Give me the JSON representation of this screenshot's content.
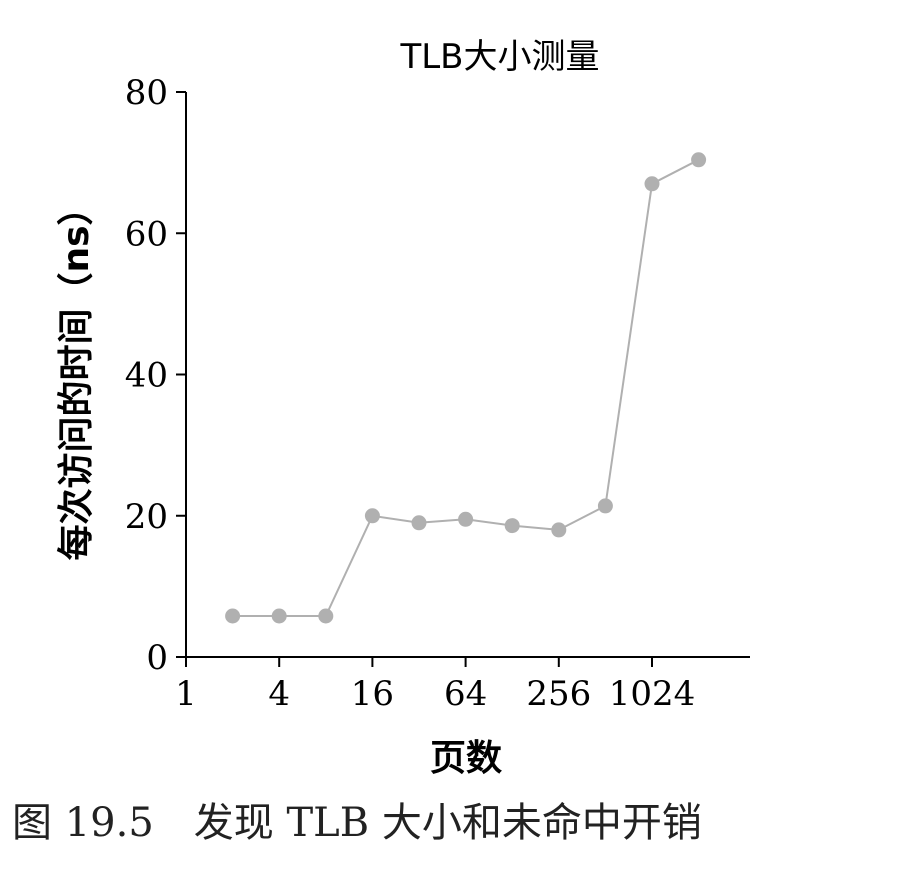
{
  "chart_data": {
    "type": "line",
    "title": "TLB大小测量",
    "xlabel": "页数",
    "ylabel": "每次访问的时间（ns）",
    "x_scale": "log2",
    "x": [
      2,
      4,
      8,
      16,
      32,
      64,
      128,
      256,
      512,
      1024,
      2048
    ],
    "series": [
      {
        "values": [
          5.8,
          5.8,
          5.8,
          20.0,
          19.0,
          19.5,
          18.6,
          18.0,
          21.4,
          67.0,
          70.4
        ],
        "color": "#b0b0b0"
      }
    ],
    "xticks": [
      1,
      4,
      16,
      64,
      256,
      1024
    ],
    "xtick_labels": [
      "1",
      "4",
      "16",
      "64",
      "256",
      "1024"
    ],
    "yticks": [
      0,
      20,
      40,
      60,
      80
    ],
    "ytick_labels": [
      "0",
      "20",
      "40",
      "60",
      "80"
    ],
    "ylim": [
      0,
      80
    ],
    "xlim": [
      1,
      4096
    ],
    "grid": false,
    "legend": "none"
  },
  "caption": "图 19.5　发现 TLB 大小和未命中开销"
}
